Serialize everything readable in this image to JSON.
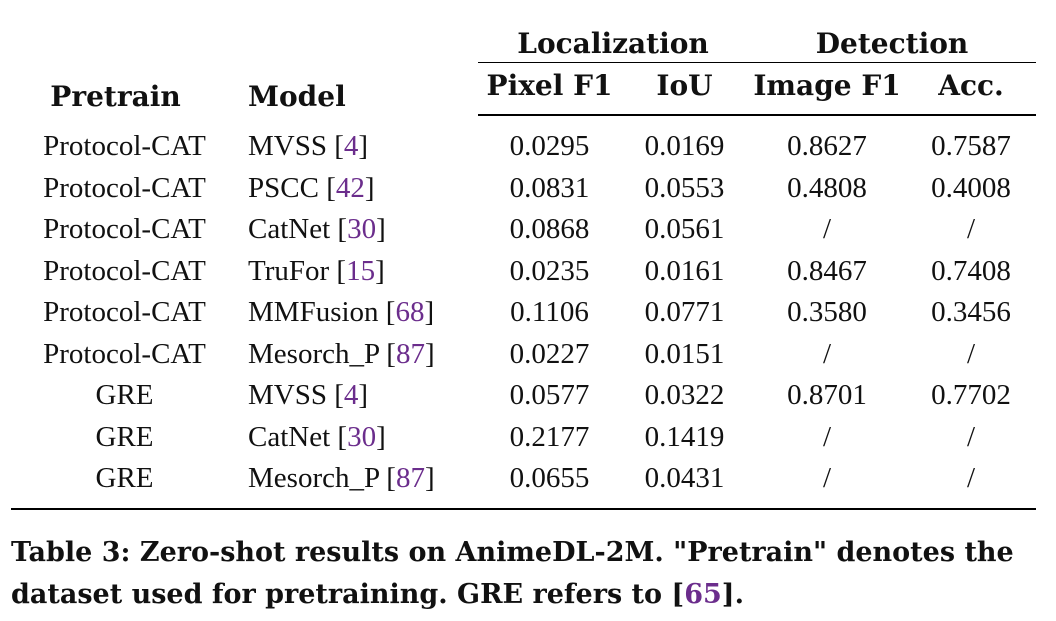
{
  "table": {
    "headers": {
      "pretrain": "Pretrain",
      "model": "Model",
      "localization": "Localization",
      "detection": "Detection",
      "pixel_f1": "Pixel F1",
      "iou": "IoU",
      "image_f1": "Image F1",
      "acc": "Acc."
    },
    "rows": [
      {
        "pretrain": "Protocol-CAT",
        "model": "MVSS",
        "ref": "4",
        "pixel_f1": "0.0295",
        "iou": "0.0169",
        "image_f1": "0.8627",
        "acc": "0.7587"
      },
      {
        "pretrain": "Protocol-CAT",
        "model": "PSCC",
        "ref": "42",
        "pixel_f1": "0.0831",
        "iou": "0.0553",
        "image_f1": "0.4808",
        "acc": "0.4008"
      },
      {
        "pretrain": "Protocol-CAT",
        "model": "CatNet",
        "ref": "30",
        "pixel_f1": "0.0868",
        "iou": "0.0561",
        "image_f1": "/",
        "acc": "/"
      },
      {
        "pretrain": "Protocol-CAT",
        "model": "TruFor",
        "ref": "15",
        "pixel_f1": "0.0235",
        "iou": "0.0161",
        "image_f1": "0.8467",
        "acc": "0.7408"
      },
      {
        "pretrain": "Protocol-CAT",
        "model": "MMFusion",
        "ref": "68",
        "pixel_f1": "0.1106",
        "iou": "0.0771",
        "image_f1": "0.3580",
        "acc": "0.3456"
      },
      {
        "pretrain": "Protocol-CAT",
        "model": "Mesorch_P",
        "ref": "87",
        "pixel_f1": "0.0227",
        "iou": "0.0151",
        "image_f1": "/",
        "acc": "/"
      },
      {
        "pretrain": "GRE",
        "model": "MVSS",
        "ref": "4",
        "pixel_f1": "0.0577",
        "iou": "0.0322",
        "image_f1": "0.8701",
        "acc": "0.7702"
      },
      {
        "pretrain": "GRE",
        "model": "CatNet",
        "ref": "30",
        "pixel_f1": "0.2177",
        "iou": "0.1419",
        "image_f1": "/",
        "acc": "/"
      },
      {
        "pretrain": "GRE",
        "model": "Mesorch_P",
        "ref": "87",
        "pixel_f1": "0.0655",
        "iou": "0.0431",
        "image_f1": "/",
        "acc": "/"
      }
    ]
  },
  "caption": {
    "text_before_ref": "Table 3: Zero-shot results on AnimeDL-2M. \"Pretrain\" denotes the dataset used for pretraining. GRE refers to [",
    "ref": "65",
    "text_after_ref": "]."
  },
  "colors": {
    "text": "#111111",
    "citation": "#6b2d8c",
    "rule": "#000000"
  }
}
